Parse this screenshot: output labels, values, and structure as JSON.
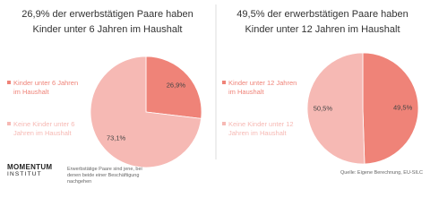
{
  "chart_data": [
    {
      "type": "pie",
      "title": "26,9% der erwerbstätigen Paare haben\nKinder unter 6 Jahren im Haushalt",
      "categories": [
        "Kinder unter 6 Jahren im Haushalt",
        "Keine Kinder unter 6 Jahren im Haushalt"
      ],
      "values": [
        26.9,
        73.1
      ],
      "value_labels": [
        "26,9%",
        "73,1%"
      ],
      "colors": [
        "#ef8378",
        "#f6b9b4"
      ]
    },
    {
      "type": "pie",
      "title": "49,5% der erwerbstätigen Paare haben\nKinder unter 12 Jahren im Haushalt",
      "categories": [
        "Kinder unter 12 Jahren im Haushalt",
        "Keine Kinder unter 12 Jahren im Haushalt"
      ],
      "values": [
        49.5,
        50.5
      ],
      "value_labels": [
        "49,5%",
        "50,5%"
      ],
      "colors": [
        "#ef8378",
        "#f6b9b4"
      ]
    }
  ],
  "footer": {
    "logo": [
      "MOMENTUM",
      "INSTITUT"
    ],
    "note": "Erwerbstätige Paare sind jene, bei denen beide einer Beschäftigung nachgehen",
    "source": "Quelle: Eigene Berechnung, EU-SILC"
  }
}
